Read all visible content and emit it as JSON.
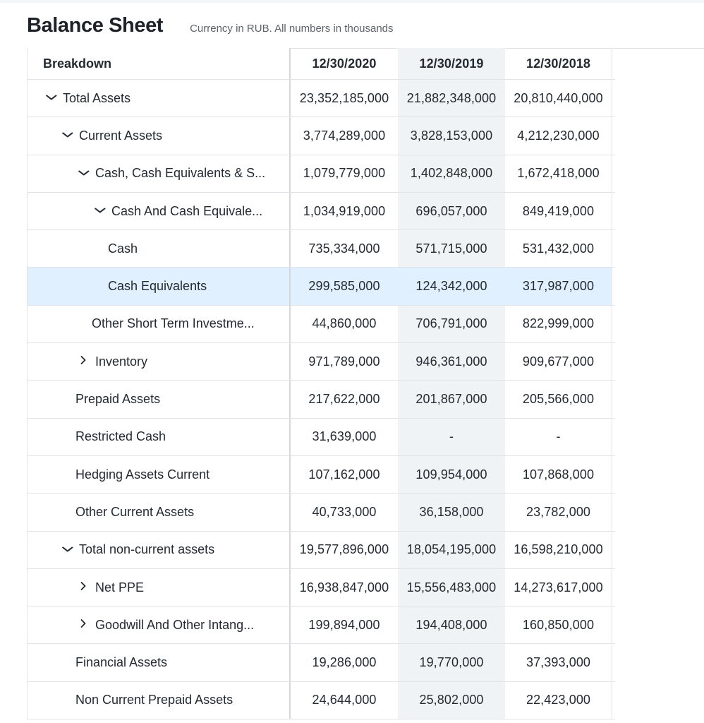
{
  "page": {
    "title": "Balance Sheet",
    "subtitle": "Currency in RUB. All numbers in thousands"
  },
  "table": {
    "header": {
      "breakdown": "Breakdown",
      "columns": [
        "12/30/2020",
        "12/30/2019",
        "12/30/2018"
      ]
    },
    "rows": [
      {
        "label": "Total Assets",
        "values": [
          "23,352,185,000",
          "21,882,348,000",
          "20,810,440,000"
        ],
        "expand": "down"
      },
      {
        "label": "Current Assets",
        "values": [
          "3,774,289,000",
          "3,828,153,000",
          "4,212,230,000"
        ],
        "expand": "down"
      },
      {
        "label": "Cash, Cash Equivalents & S...",
        "values": [
          "1,079,779,000",
          "1,402,848,000",
          "1,672,418,000"
        ],
        "expand": "down"
      },
      {
        "label": "Cash And Cash Equivale...",
        "values": [
          "1,034,919,000",
          "696,057,000",
          "849,419,000"
        ],
        "expand": "down"
      },
      {
        "label": "Cash",
        "values": [
          "735,334,000",
          "571,715,000",
          "531,432,000"
        ],
        "expand": "none"
      },
      {
        "label": "Cash Equivalents",
        "values": [
          "299,585,000",
          "124,342,000",
          "317,987,000"
        ],
        "expand": "none",
        "highlighted": true
      },
      {
        "label": "Other Short Term Investme...",
        "values": [
          "44,860,000",
          "706,791,000",
          "822,999,000"
        ],
        "expand": "none"
      },
      {
        "label": "Inventory",
        "values": [
          "971,789,000",
          "946,361,000",
          "909,677,000"
        ],
        "expand": "right"
      },
      {
        "label": "Prepaid Assets",
        "values": [
          "217,622,000",
          "201,867,000",
          "205,566,000"
        ],
        "expand": "none"
      },
      {
        "label": "Restricted Cash",
        "values": [
          "31,639,000",
          "-",
          "-"
        ],
        "expand": "none"
      },
      {
        "label": "Hedging Assets Current",
        "values": [
          "107,162,000",
          "109,954,000",
          "107,868,000"
        ],
        "expand": "none"
      },
      {
        "label": "Other Current Assets",
        "values": [
          "40,733,000",
          "36,158,000",
          "23,782,000"
        ],
        "expand": "none"
      },
      {
        "label": "Total non-current assets",
        "values": [
          "19,577,896,000",
          "18,054,195,000",
          "16,598,210,000"
        ],
        "expand": "down"
      },
      {
        "label": "Net PPE",
        "values": [
          "16,938,847,000",
          "15,556,483,000",
          "14,273,617,000"
        ],
        "expand": "right"
      },
      {
        "label": "Goodwill And Other Intang...",
        "values": [
          "199,894,000",
          "194,408,000",
          "160,850,000"
        ],
        "expand": "right"
      },
      {
        "label": "Financial Assets",
        "values": [
          "19,286,000",
          "19,770,000",
          "37,393,000"
        ],
        "expand": "none"
      },
      {
        "label": "Non Current Prepaid Assets",
        "values": [
          "24,644,000",
          "25,802,000",
          "22,423,000"
        ],
        "expand": "none"
      }
    ]
  },
  "icons": {
    "expanded": "chevron-down-icon",
    "collapsed": "chevron-right-icon"
  },
  "colors": {
    "highlight_row": "#e0f0ff",
    "alt_column": "#f0f3f5",
    "border": "#e0e4e9"
  }
}
